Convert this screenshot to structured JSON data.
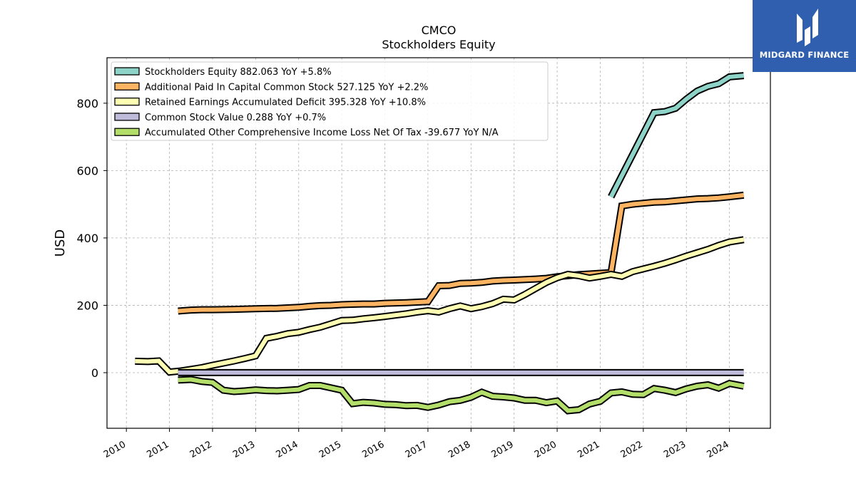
{
  "brand": {
    "name": "MIDGARD FINANCE",
    "icon": "midgard-logo-icon",
    "color": "#2f5fae"
  },
  "chart_data": {
    "type": "line",
    "title": "CMCO",
    "subtitle": "Stockholders  Equity",
    "ylabel": "USD",
    "xlim": [
      2009.55,
      2024.95
    ],
    "ylim": [
      -165,
      935
    ],
    "yticks": [
      0,
      200,
      400,
      600,
      800
    ],
    "xticks": [
      2010,
      2011,
      2012,
      2013,
      2014,
      2015,
      2016,
      2017,
      2018,
      2019,
      2020,
      2021,
      2022,
      2023,
      2024
    ],
    "grid": true,
    "legend_position": "top-left",
    "series": [
      {
        "name": "Stockholders Equity",
        "legend": "Stockholders Equity  882.063 YoY +5.8%",
        "color": "#8ed3c7",
        "points": [
          [
            2021.25,
            522
          ],
          [
            2022.25,
            772
          ],
          [
            2022.5,
            775
          ],
          [
            2022.75,
            785
          ],
          [
            2023.0,
            812
          ],
          [
            2023.25,
            836
          ],
          [
            2023.5,
            850
          ],
          [
            2023.75,
            858
          ],
          [
            2024.0,
            878
          ],
          [
            2024.33,
            882
          ]
        ]
      },
      {
        "name": "Additional Paid In Capital Common Stock",
        "legend": "Additional Paid In Capital Common Stock  527.125 YoY +2.2%",
        "color": "#fdb462",
        "points": [
          [
            2011.2,
            183
          ],
          [
            2011.5,
            186
          ],
          [
            2011.75,
            187
          ],
          [
            2012.0,
            187
          ],
          [
            2012.5,
            188
          ],
          [
            2013.0,
            190
          ],
          [
            2013.5,
            191
          ],
          [
            2014.0,
            194
          ],
          [
            2014.25,
            197
          ],
          [
            2014.5,
            199
          ],
          [
            2014.75,
            200
          ],
          [
            2015.0,
            202
          ],
          [
            2015.25,
            203
          ],
          [
            2015.5,
            204
          ],
          [
            2015.75,
            204
          ],
          [
            2016.0,
            206
          ],
          [
            2016.5,
            208
          ],
          [
            2017.0,
            211
          ],
          [
            2017.25,
            258
          ],
          [
            2017.5,
            259
          ],
          [
            2017.75,
            265
          ],
          [
            2018.0,
            266
          ],
          [
            2018.25,
            268
          ],
          [
            2018.5,
            272
          ],
          [
            2018.75,
            274
          ],
          [
            2019.0,
            275
          ],
          [
            2019.5,
            278
          ],
          [
            2019.75,
            280
          ],
          [
            2020.0,
            285
          ],
          [
            2020.25,
            288
          ],
          [
            2020.5,
            291
          ],
          [
            2020.75,
            293
          ],
          [
            2021.0,
            295
          ],
          [
            2021.25,
            297
          ],
          [
            2021.5,
            495
          ],
          [
            2021.75,
            500
          ],
          [
            2022.0,
            503
          ],
          [
            2022.25,
            506
          ],
          [
            2022.5,
            507
          ],
          [
            2022.75,
            510
          ],
          [
            2023.0,
            513
          ],
          [
            2023.25,
            516
          ],
          [
            2023.5,
            517
          ],
          [
            2023.75,
            519
          ],
          [
            2024.0,
            522
          ],
          [
            2024.33,
            527
          ]
        ]
      },
      {
        "name": "Retained Earnings Accumulated Deficit",
        "legend": "Retained Earnings Accumulated Deficit  395.328 YoY +10.8%",
        "color": "#ffffb3",
        "points": [
          [
            2010.2,
            34
          ],
          [
            2010.5,
            33
          ],
          [
            2010.75,
            35
          ],
          [
            2011.0,
            2
          ],
          [
            2011.25,
            5
          ],
          [
            2011.5,
            10
          ],
          [
            2011.75,
            15
          ],
          [
            2012.0,
            22
          ],
          [
            2012.5,
            35
          ],
          [
            2012.75,
            42
          ],
          [
            2013.0,
            50
          ],
          [
            2013.25,
            102
          ],
          [
            2013.5,
            108
          ],
          [
            2013.75,
            116
          ],
          [
            2014.0,
            120
          ],
          [
            2014.25,
            128
          ],
          [
            2014.5,
            135
          ],
          [
            2014.75,
            145
          ],
          [
            2015.0,
            155
          ],
          [
            2015.25,
            156
          ],
          [
            2015.5,
            160
          ],
          [
            2015.75,
            163
          ],
          [
            2016.0,
            167
          ],
          [
            2016.25,
            171
          ],
          [
            2016.5,
            175
          ],
          [
            2016.75,
            180
          ],
          [
            2017.0,
            184
          ],
          [
            2017.25,
            180
          ],
          [
            2017.5,
            190
          ],
          [
            2017.75,
            198
          ],
          [
            2018.0,
            190
          ],
          [
            2018.25,
            196
          ],
          [
            2018.5,
            205
          ],
          [
            2018.75,
            218
          ],
          [
            2019.0,
            216
          ],
          [
            2019.25,
            232
          ],
          [
            2019.5,
            250
          ],
          [
            2019.75,
            268
          ],
          [
            2020.0,
            282
          ],
          [
            2020.25,
            292
          ],
          [
            2020.5,
            288
          ],
          [
            2020.75,
            281
          ],
          [
            2021.0,
            286
          ],
          [
            2021.25,
            292
          ],
          [
            2021.5,
            286
          ],
          [
            2021.75,
            300
          ],
          [
            2022.0,
            308
          ],
          [
            2022.25,
            316
          ],
          [
            2022.5,
            325
          ],
          [
            2022.75,
            335
          ],
          [
            2023.0,
            346
          ],
          [
            2023.25,
            356
          ],
          [
            2023.5,
            366
          ],
          [
            2023.75,
            378
          ],
          [
            2024.0,
            388
          ],
          [
            2024.33,
            395
          ]
        ]
      },
      {
        "name": "Common Stock Value",
        "legend": "Common Stock Value  0.288 YoY +0.7%",
        "color": "#bebada",
        "points": [
          [
            2011.2,
            0.2
          ],
          [
            2024.33,
            0.288
          ]
        ]
      },
      {
        "name": "Accumulated Other Comprehensive Income Loss Net Of Tax",
        "legend": "Accumulated Other Comprehensive Income Loss Net Of Tax  -39.677 YoY N/A",
        "color": "#b3de69",
        "points": [
          [
            2011.2,
            -22
          ],
          [
            2011.5,
            -20
          ],
          [
            2011.75,
            -26
          ],
          [
            2012.0,
            -29
          ],
          [
            2012.25,
            -52
          ],
          [
            2012.5,
            -56
          ],
          [
            2012.75,
            -54
          ],
          [
            2013.0,
            -51
          ],
          [
            2013.25,
            -53
          ],
          [
            2013.5,
            -54
          ],
          [
            2013.75,
            -52
          ],
          [
            2014.0,
            -50
          ],
          [
            2014.25,
            -38
          ],
          [
            2014.5,
            -38
          ],
          [
            2014.75,
            -45
          ],
          [
            2015.0,
            -52
          ],
          [
            2015.25,
            -92
          ],
          [
            2015.5,
            -88
          ],
          [
            2015.75,
            -90
          ],
          [
            2016.0,
            -94
          ],
          [
            2016.25,
            -95
          ],
          [
            2016.5,
            -98
          ],
          [
            2016.75,
            -97
          ],
          [
            2017.0,
            -103
          ],
          [
            2017.25,
            -96
          ],
          [
            2017.5,
            -86
          ],
          [
            2017.75,
            -82
          ],
          [
            2018.0,
            -73
          ],
          [
            2018.25,
            -58
          ],
          [
            2018.5,
            -70
          ],
          [
            2018.75,
            -72
          ],
          [
            2019.0,
            -75
          ],
          [
            2019.25,
            -82
          ],
          [
            2019.5,
            -82
          ],
          [
            2019.75,
            -89
          ],
          [
            2020.0,
            -84
          ],
          [
            2020.25,
            -113
          ],
          [
            2020.5,
            -110
          ],
          [
            2020.75,
            -93
          ],
          [
            2021.0,
            -85
          ],
          [
            2021.25,
            -60
          ],
          [
            2021.5,
            -57
          ],
          [
            2021.75,
            -64
          ],
          [
            2022.0,
            -65
          ],
          [
            2022.25,
            -47
          ],
          [
            2022.5,
            -52
          ],
          [
            2022.75,
            -59
          ],
          [
            2023.0,
            -48
          ],
          [
            2023.25,
            -40
          ],
          [
            2023.5,
            -36
          ],
          [
            2023.75,
            -46
          ],
          [
            2024.0,
            -32
          ],
          [
            2024.33,
            -40
          ]
        ]
      }
    ]
  }
}
